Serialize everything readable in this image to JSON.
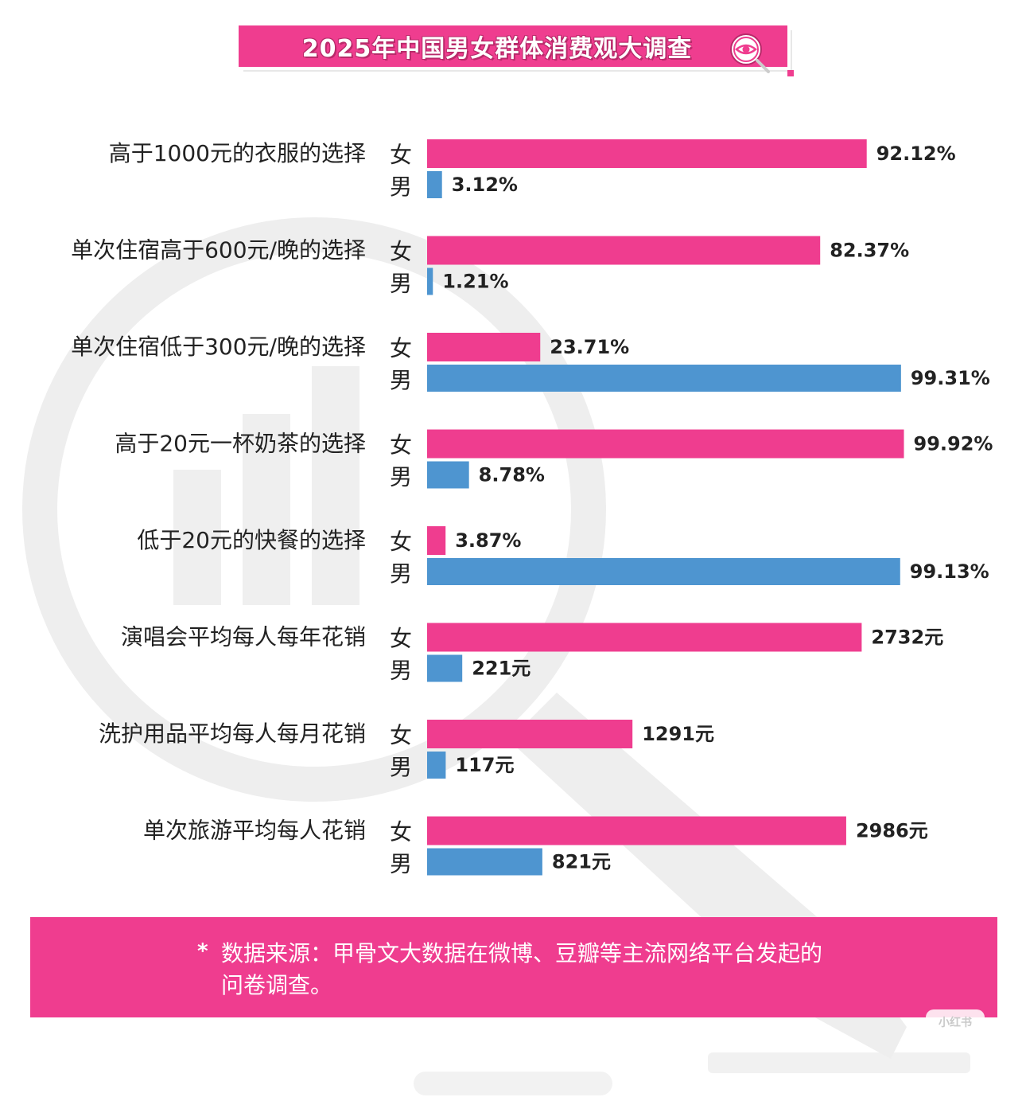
{
  "title": "2025年中国男女群体消费观大调查",
  "colors": {
    "female": "#ef3d8f",
    "male": "#4e95d0",
    "accent": "#ef3d8f",
    "watermark": "#eeeeee"
  },
  "icons": [
    "eye-magnifier-icon"
  ],
  "chart_data": {
    "type": "bar",
    "orientation": "horizontal",
    "series_labels": [
      "女",
      "男"
    ],
    "categories": [
      "高于1000元的衣服的选择",
      "单次住宿高于600元/晚的选择",
      "单次住宿低于300元/晚的选择",
      "高于20元一杯奶茶的选择",
      "低于20元的快餐的选择",
      "演唱会平均每人每年花销",
      "洗护用品平均每人每月花销",
      "单次旅游平均每人花销"
    ],
    "rows": [
      {
        "female": 92.12,
        "male": 3.12,
        "female_label": "92.12%",
        "male_label": "3.12%",
        "max": 100
      },
      {
        "female": 82.37,
        "male": 1.21,
        "female_label": "82.37%",
        "male_label": "1.21%",
        "max": 100
      },
      {
        "female": 23.71,
        "male": 99.31,
        "female_label": "23.71%",
        "male_label": "99.31%",
        "max": 100
      },
      {
        "female": 99.92,
        "male": 8.78,
        "female_label": "99.92%",
        "male_label": "8.78%",
        "max": 100
      },
      {
        "female": 3.87,
        "male": 99.13,
        "female_label": "3.87%",
        "male_label": "99.13%",
        "max": 100
      },
      {
        "female": 2732,
        "male": 221,
        "female_label": "2732元",
        "male_label": "221元",
        "max": 3000
      },
      {
        "female": 1291,
        "male": 117,
        "female_label": "1291元",
        "male_label": "117元",
        "max": 3000
      },
      {
        "female": 2986,
        "male": 821,
        "female_label": "2986元",
        "male_label": "821元",
        "max": 3400
      }
    ],
    "legend": "none",
    "grid": false
  },
  "footer": {
    "star": "*",
    "note": "数据来源：甲骨文大数据在微博、豆瓣等主流网络平台发起的问卷调查。"
  },
  "watermark_tag": "小红书"
}
